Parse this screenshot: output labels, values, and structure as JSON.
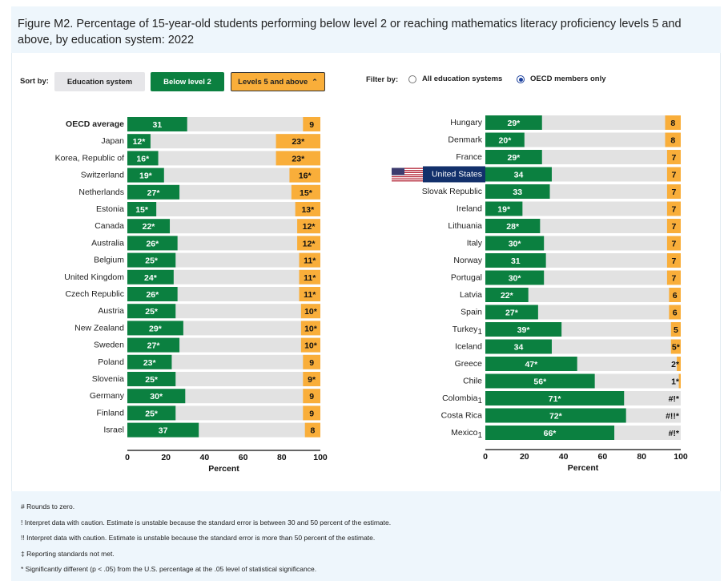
{
  "title": "Figure M2. Percentage of 15-year-old students performing below level 2 or reaching mathematics literacy proficiency levels 5 and above, by education system: 2022",
  "controls": {
    "sort_label": "Sort by:",
    "sort_buttons": [
      "Education system",
      "Below level 2",
      "Levels 5 and above"
    ],
    "sort_active_icon": "chevron-up-icon",
    "filter_label": "Filter by:",
    "filter_options": [
      "All education systems",
      "OECD members only"
    ],
    "filter_selected": "OECD members only"
  },
  "colors": {
    "below": "#0b8040",
    "above": "#f9ae3a",
    "track": "#e2e2e2",
    "highlight": "#12306b"
  },
  "chart_data": [
    {
      "type": "bar",
      "stacked_ends": true,
      "xlabel": "Percent",
      "xlim": [
        0,
        100
      ],
      "ticks": [
        "0",
        "20",
        "40",
        "60",
        "80",
        "100"
      ],
      "grid": false,
      "rows": [
        {
          "name": "OECD average",
          "bold": true,
          "below": 31,
          "below_label": "31",
          "above": 9,
          "above_label": "9"
        },
        {
          "name": "Japan",
          "below": 12,
          "below_label": "12*",
          "above": 23,
          "above_label": "23*"
        },
        {
          "name": "Korea, Republic of",
          "below": 16,
          "below_label": "16*",
          "above": 23,
          "above_label": "23*"
        },
        {
          "name": "Switzerland",
          "below": 19,
          "below_label": "19*",
          "above": 16,
          "above_label": "16*"
        },
        {
          "name": "Netherlands",
          "below": 27,
          "below_label": "27*",
          "above": 15,
          "above_label": "15*"
        },
        {
          "name": "Estonia",
          "below": 15,
          "below_label": "15*",
          "above": 13,
          "above_label": "13*"
        },
        {
          "name": "Canada",
          "below": 22,
          "below_label": "22*",
          "above": 12,
          "above_label": "12*"
        },
        {
          "name": "Australia",
          "below": 26,
          "below_label": "26*",
          "above": 12,
          "above_label": "12*"
        },
        {
          "name": "Belgium",
          "below": 25,
          "below_label": "25*",
          "above": 11,
          "above_label": "11*"
        },
        {
          "name": "United Kingdom",
          "below": 24,
          "below_label": "24*",
          "above": 11,
          "above_label": "11*"
        },
        {
          "name": "Czech Republic",
          "below": 26,
          "below_label": "26*",
          "above": 11,
          "above_label": "11*"
        },
        {
          "name": "Austria",
          "below": 25,
          "below_label": "25*",
          "above": 10,
          "above_label": "10*"
        },
        {
          "name": "New Zealand",
          "below": 29,
          "below_label": "29*",
          "above": 10,
          "above_label": "10*"
        },
        {
          "name": "Sweden",
          "below": 27,
          "below_label": "27*",
          "above": 10,
          "above_label": "10*"
        },
        {
          "name": "Poland",
          "below": 23,
          "below_label": "23*",
          "above": 9,
          "above_label": "9"
        },
        {
          "name": "Slovenia",
          "below": 25,
          "below_label": "25*",
          "above": 9,
          "above_label": "9*"
        },
        {
          "name": "Germany",
          "below": 30,
          "below_label": "30*",
          "above": 9,
          "above_label": "9"
        },
        {
          "name": "Finland",
          "below": 25,
          "below_label": "25*",
          "above": 9,
          "above_label": "9"
        },
        {
          "name": "Israel",
          "below": 37,
          "below_label": "37",
          "above": 8,
          "above_label": "8"
        }
      ]
    },
    {
      "type": "bar",
      "stacked_ends": true,
      "xlabel": "Percent",
      "xlim": [
        0,
        100
      ],
      "ticks": [
        "0",
        "20",
        "40",
        "60",
        "80",
        "100"
      ],
      "grid": false,
      "rows": [
        {
          "name": "Hungary",
          "below": 29,
          "below_label": "29*",
          "above": 8,
          "above_label": "8"
        },
        {
          "name": "Denmark",
          "below": 20,
          "below_label": "20*",
          "above": 8,
          "above_label": "8"
        },
        {
          "name": "France",
          "below": 29,
          "below_label": "29*",
          "above": 7,
          "above_label": "7"
        },
        {
          "name": "United States",
          "highlight": true,
          "flag": "us-flag",
          "below": 34,
          "below_label": "34",
          "above": 7,
          "above_label": "7"
        },
        {
          "name": "Slovak Republic",
          "below": 33,
          "below_label": "33",
          "above": 7,
          "above_label": "7"
        },
        {
          "name": "Ireland",
          "below": 19,
          "below_label": "19*",
          "above": 7,
          "above_label": "7"
        },
        {
          "name": "Lithuania",
          "below": 28,
          "below_label": "28*",
          "above": 7,
          "above_label": "7"
        },
        {
          "name": "Italy",
          "below": 30,
          "below_label": "30*",
          "above": 7,
          "above_label": "7"
        },
        {
          "name": "Norway",
          "below": 31,
          "below_label": "31",
          "above": 7,
          "above_label": "7"
        },
        {
          "name": "Portugal",
          "below": 30,
          "below_label": "30*",
          "above": 7,
          "above_label": "7"
        },
        {
          "name": "Latvia",
          "below": 22,
          "below_label": "22*",
          "above": 6,
          "above_label": "6"
        },
        {
          "name": "Spain",
          "below": 27,
          "below_label": "27*",
          "above": 6,
          "above_label": "6"
        },
        {
          "name": "Turkey",
          "note": "1",
          "below": 39,
          "below_label": "39*",
          "above": 5,
          "above_label": "5"
        },
        {
          "name": "Iceland",
          "below": 34,
          "below_label": "34",
          "above": 5,
          "above_label": "5*"
        },
        {
          "name": "Greece",
          "below": 47,
          "below_label": "47*",
          "above": 2,
          "above_label": "2*"
        },
        {
          "name": "Chile",
          "below": 56,
          "below_label": "56*",
          "above": 1,
          "above_label": "1*"
        },
        {
          "name": "Colombia",
          "note": "1",
          "below": 71,
          "below_label": "71*",
          "above": 0,
          "above_label": "#!*"
        },
        {
          "name": "Costa Rica",
          "below": 72,
          "below_label": "72*",
          "above": 0,
          "above_label": "#!!*"
        },
        {
          "name": "Mexico",
          "note": "1",
          "below": 66,
          "below_label": "66*",
          "above": 0,
          "above_label": "#!*"
        }
      ]
    }
  ],
  "footnotes": [
    "# Rounds to zero.",
    "! Interpret data with caution. Estimate is unstable because the standard error is between 30 and 50 percent of the estimate.",
    "!! Interpret data with caution. Estimate is unstable because the standard error is more than 50 percent of the estimate.",
    "‡ Reporting standards not met.",
    "* Significantly different (p < .05) from the U.S. percentage at the .05 level of statistical significance."
  ]
}
